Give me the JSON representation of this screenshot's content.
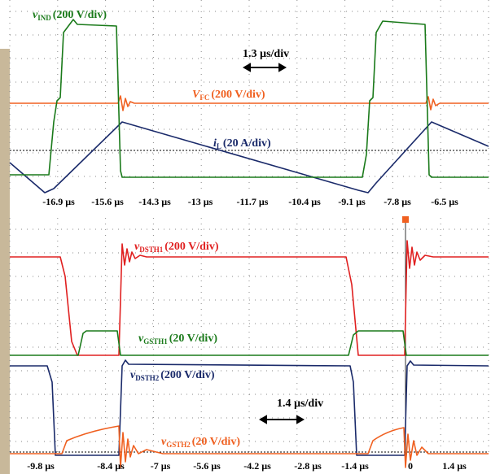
{
  "top_panel": {
    "traces": [
      {
        "symbol": "v",
        "subscript": "IND",
        "scale": "(200 V/div)"
      },
      {
        "symbol": "V",
        "subscript": "FC",
        "scale": "(200 V/div)"
      },
      {
        "symbol": "i",
        "subscript": "L",
        "scale": "(20 A/div)"
      }
    ],
    "time_scale": "1.3  µs/div",
    "time_labels": [
      "-16.9 µs",
      "-15.6 µs",
      "-14.3 µs",
      "-13 µs",
      "-11.7 µs",
      "-10.4 µs",
      "-9.1 µs",
      "-7.8 µs",
      "-6.5 µs"
    ]
  },
  "bottom_panel": {
    "traces": [
      {
        "symbol": "v",
        "subscript": "DSTH1",
        "scale": "(200 V/div)"
      },
      {
        "symbol": "v",
        "subscript": "GSTH1",
        "scale": "(20 V/div)"
      },
      {
        "symbol": "v",
        "subscript": "DSTH2",
        "scale": "(200 V/div)"
      },
      {
        "symbol": "v",
        "subscript": "GSTH2",
        "scale": "(20 V/div)"
      }
    ],
    "time_scale": "1.4  µs/div",
    "time_labels": [
      "-9.8 µs",
      "-8.4 µs",
      "-7 µs",
      "-5.6 µs",
      "-4.2 µs",
      "-2.8 µs",
      "-1.4 µs",
      "0",
      "1.4 µs"
    ]
  }
}
